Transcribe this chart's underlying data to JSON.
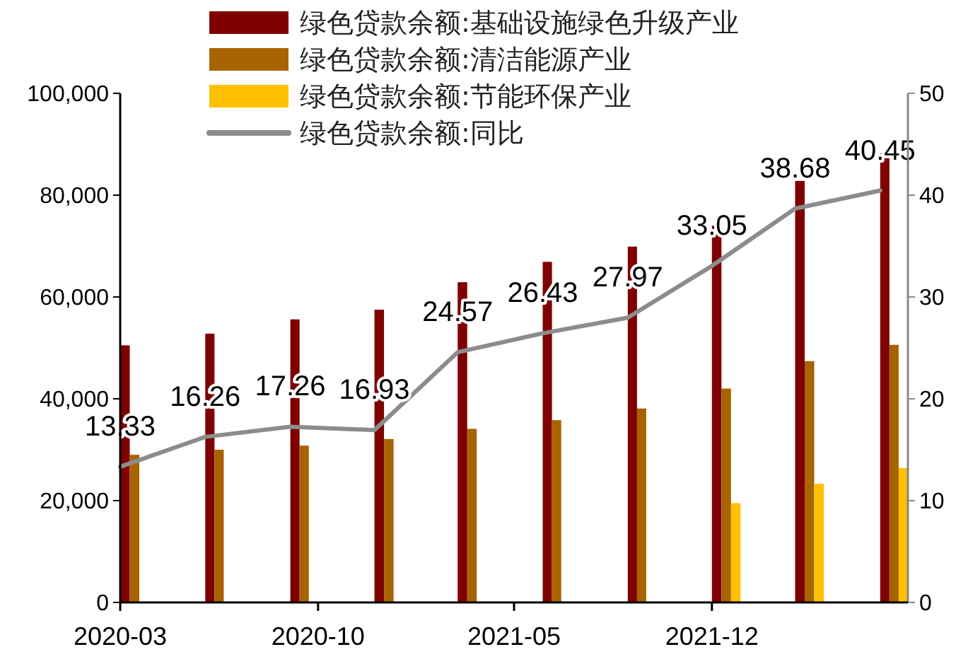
{
  "chart_data": {
    "type": "bar",
    "x": [
      "2020-03",
      "2020-06",
      "2020-09",
      "2020-12",
      "2021-03",
      "2021-06",
      "2021-09",
      "2021-12",
      "2022-03",
      "2022-06"
    ],
    "xlim": [
      "2020-03",
      "2022-07"
    ],
    "xticks": [
      {
        "value": "2020-03",
        "label": "2020-03"
      },
      {
        "value": "2020-10",
        "label": "2020-10"
      },
      {
        "value": "2021-05",
        "label": "2021-05"
      },
      {
        "value": "2021-12",
        "label": "2021-12"
      }
    ],
    "ylim": [
      0,
      100000
    ],
    "yticks": [
      {
        "value": 0,
        "label": "0"
      },
      {
        "value": 20000,
        "label": "20,000"
      },
      {
        "value": 40000,
        "label": "40,000"
      },
      {
        "value": 60000,
        "label": "60,000"
      },
      {
        "value": 80000,
        "label": "80,000"
      },
      {
        "value": 100000,
        "label": "100,000"
      }
    ],
    "y2lim": [
      0,
      50
    ],
    "y2ticks": [
      0,
      10,
      20,
      30,
      40,
      50
    ],
    "legend": "top",
    "grid": false,
    "series": [
      {
        "name": "绿色贷款余额:基础设施绿色升级产业",
        "color": "#7f0000",
        "values": [
          50500,
          52800,
          55600,
          57500,
          62900,
          66900,
          69900,
          74000,
          82800,
          88200
        ]
      },
      {
        "name": "绿色贷款余额:清洁能源产业",
        "color": "#a86400",
        "values": [
          29000,
          30000,
          30800,
          32100,
          34100,
          35800,
          38100,
          42000,
          47400,
          50600
        ]
      },
      {
        "name": "绿色贷款余额:节能环保产业",
        "color": "#ffc000",
        "values": [
          null,
          null,
          null,
          null,
          null,
          null,
          null,
          19500,
          23300,
          26400
        ]
      },
      {
        "name": "绿色贷款余额:同比",
        "type": "line",
        "axis": "y2",
        "color": "#8c8c8c",
        "values": [
          13.33,
          16.26,
          17.26,
          16.93,
          24.57,
          26.43,
          27.97,
          33.05,
          38.68,
          40.45
        ],
        "value_labels": [
          "13.33",
          "16.26",
          "17.26",
          "16.93",
          "24.57",
          "26.43",
          "27.97",
          "33.05",
          "38.68",
          "40.45"
        ]
      }
    ]
  }
}
